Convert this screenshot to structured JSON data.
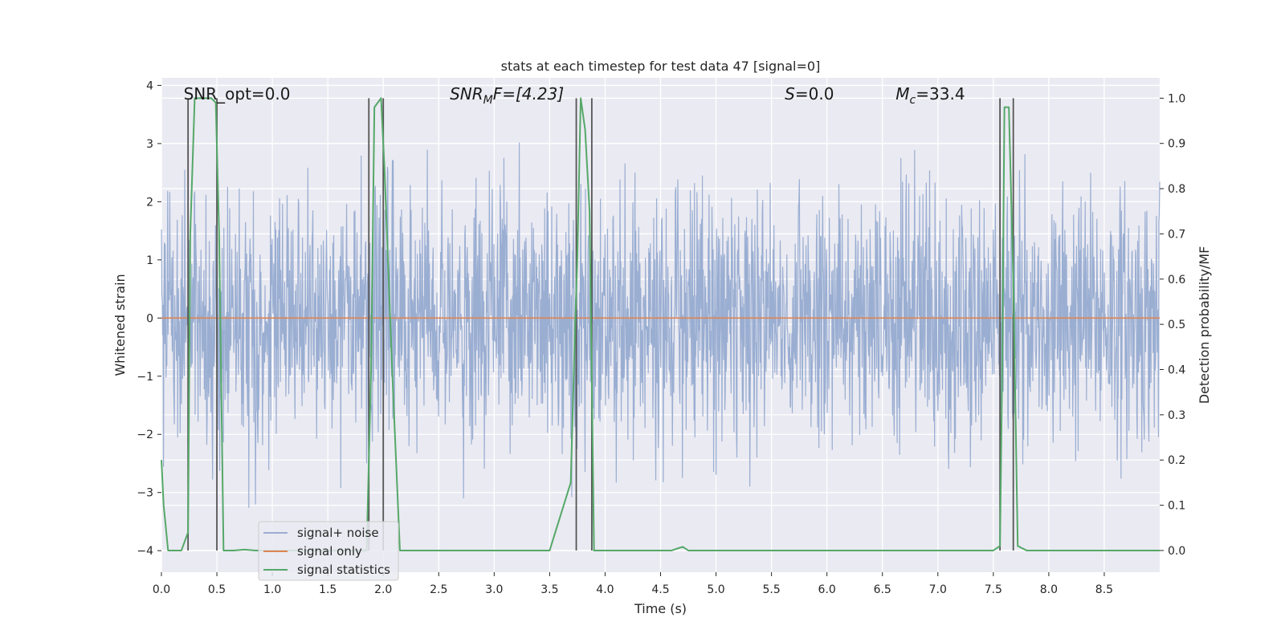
{
  "chart_data": {
    "type": "line",
    "title": "stats at each timestep for test data 47 [signal=0]",
    "xlabel": "Time (s)",
    "ylabel_left": "Whitened strain",
    "ylabel_right": "Detection probability/MF",
    "xlim": [
      0.0,
      9.0
    ],
    "ylim_left": [
      -4.37,
      4.13
    ],
    "ylim_right": [
      -0.048,
      1.045
    ],
    "x_ticks": [
      0.0,
      0.5,
      1.0,
      1.5,
      2.0,
      2.5,
      3.0,
      3.5,
      4.0,
      4.5,
      5.0,
      5.5,
      6.0,
      6.5,
      7.0,
      7.5,
      8.0,
      8.5
    ],
    "x_tick_labels": [
      "0.0",
      "0.5",
      "1.0",
      "1.5",
      "2.0",
      "2.5",
      "3.0",
      "3.5",
      "4.0",
      "4.5",
      "5.0",
      "5.5",
      "6.0",
      "6.5",
      "7.0",
      "7.5",
      "8.0",
      "8.5"
    ],
    "y_left_ticks": [
      4,
      3,
      2,
      1,
      0,
      -1,
      -2,
      -3,
      -4
    ],
    "y_left_tick_labels": [
      "4",
      "3",
      "2",
      "1",
      "0",
      "−1",
      "−2",
      "−3",
      "−4"
    ],
    "y_right_ticks": [
      1.0,
      0.9,
      0.8,
      0.7,
      0.6,
      0.5,
      0.4,
      0.3,
      0.2,
      0.1,
      0.0
    ],
    "y_right_tick_labels": [
      "1.0",
      "0.9",
      "0.8",
      "0.7",
      "0.6",
      "0.5",
      "0.4",
      "0.3",
      "0.2",
      "0.1",
      "0.0"
    ],
    "annotations": {
      "snr_opt": "SNR_opt=0.0",
      "snr_mf_main": "SNR",
      "snr_mf_sub": "M",
      "snr_mf_tail": "F=[4.23]",
      "s_main": "S",
      "s_tail": "=0.0",
      "mc_main": "M",
      "mc_sub": "c",
      "mc_tail": "=33.4"
    },
    "legend": {
      "position": "lower-left",
      "entries": [
        "signal+ noise",
        "signal only",
        "signal statistics"
      ]
    },
    "colors": {
      "background": "#eaeaf2",
      "grid": "#ffffff",
      "noise": "#9aaed2",
      "signal_only": "#dd8452",
      "statistics": "#55a868",
      "vlines": "#555555"
    },
    "noise_series": {
      "name": "signal+ noise",
      "t_start": 0.0,
      "t_end": 9.0,
      "band_sigma": 1.15,
      "typical_abs_max": 2.6,
      "extreme_abs_max": 4.0
    },
    "signal_only_series": {
      "name": "signal only",
      "value": 0.0
    },
    "statistics_series": {
      "name": "signal statistics",
      "x": [
        0.0,
        0.02,
        0.06,
        0.1,
        0.18,
        0.24,
        0.26,
        0.3,
        0.45,
        0.49,
        0.52,
        0.56,
        0.65,
        0.75,
        0.85,
        0.95,
        1.1,
        1.3,
        1.6,
        1.85,
        1.89,
        1.92,
        1.98,
        2.01,
        2.08,
        2.15,
        2.5,
        3.0,
        3.5,
        3.69,
        3.73,
        3.75,
        3.78,
        3.82,
        3.86,
        3.9,
        4.0,
        4.3,
        4.6,
        4.66,
        4.7,
        4.75,
        4.9,
        5.5,
        6.0,
        6.5,
        7.0,
        7.5,
        7.56,
        7.58,
        7.6,
        7.64,
        7.68,
        7.72,
        7.8,
        8.0,
        8.5,
        9.0
      ],
      "values": [
        0.2,
        0.1,
        0.0,
        0.0,
        0.0,
        0.04,
        0.7,
        1.0,
        1.0,
        0.99,
        0.7,
        0.0,
        0.0,
        0.002,
        0.0,
        0.0,
        0.0,
        0.0,
        0.0,
        0.0,
        0.4,
        0.98,
        1.0,
        0.85,
        0.4,
        0.0,
        0.0,
        0.0,
        0.0,
        0.15,
        0.5,
        0.65,
        1.0,
        0.93,
        0.75,
        0.0,
        0.0,
        0.0,
        0.0,
        0.005,
        0.008,
        0.0,
        0.0,
        0.0,
        0.0,
        0.0,
        0.0,
        0.0,
        0.01,
        0.4,
        0.98,
        0.98,
        0.6,
        0.01,
        0.0,
        0.0,
        0.0,
        0.0
      ]
    },
    "vlines": [
      0.24,
      0.5,
      1.87,
      2.0,
      3.74,
      3.88,
      7.56,
      7.68
    ]
  }
}
